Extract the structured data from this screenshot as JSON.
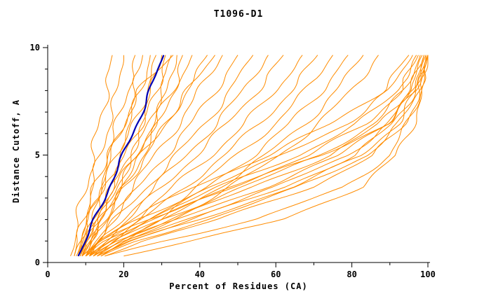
{
  "chart_data": {
    "type": "line",
    "title": "T1096-D1",
    "xlabel": "Percent of Residues (CA)",
    "ylabel": "Distance Cutoff, A",
    "xlim": [
      0,
      100
    ],
    "ylim": [
      0,
      10
    ],
    "xticks": [
      0,
      20,
      40,
      60,
      80,
      100
    ],
    "xminor": [
      10,
      30,
      50,
      70,
      90
    ],
    "yticks": [
      0,
      5,
      10
    ],
    "yminor": [
      1,
      2,
      3,
      4,
      6,
      7,
      8,
      9
    ],
    "grid": false,
    "legend_position": "none",
    "colors": {
      "model_curves": "#ff8c00",
      "highlight_curve": "#0000b4",
      "axis": "#000000",
      "background": "#ffffff"
    },
    "y_anchors": [
      0.3,
      1,
      2,
      3.5,
      5,
      6.5,
      8,
      9.65
    ],
    "model_curves_x": [
      [
        6,
        7,
        8,
        10,
        12,
        13.5,
        15.5,
        17
      ],
      [
        7,
        8,
        9.5,
        11.5,
        14,
        16,
        18.5,
        20
      ],
      [
        7,
        8.5,
        10,
        12.5,
        15.5,
        18.5,
        21,
        23
      ],
      [
        8,
        9,
        11,
        14,
        17,
        20,
        23,
        25
      ],
      [
        8,
        9.5,
        11.5,
        14.5,
        18,
        21.5,
        24.5,
        27
      ],
      [
        8.5,
        10,
        12,
        15,
        19,
        23,
        26,
        28.5
      ],
      [
        9,
        10.5,
        13,
        16.5,
        20.5,
        24.5,
        27.5,
        30
      ],
      [
        9,
        11,
        13.5,
        17,
        21.5,
        25.5,
        28.5,
        31
      ],
      [
        10,
        11.5,
        14,
        18,
        22.5,
        26.5,
        30,
        32.5
      ],
      [
        10,
        12,
        15,
        19,
        23.5,
        28,
        31.5,
        34
      ],
      [
        11,
        13,
        16,
        20,
        25,
        29.5,
        33,
        35.5
      ],
      [
        7.5,
        9,
        11,
        13.5,
        16.5,
        20,
        24,
        33
      ],
      [
        8,
        10,
        13,
        18,
        23,
        28,
        33,
        38
      ],
      [
        9,
        11,
        14.5,
        20,
        26,
        31.5,
        36.5,
        42
      ],
      [
        9,
        12,
        16,
        22,
        28.5,
        34.5,
        40,
        46
      ],
      [
        10,
        12.5,
        17,
        24,
        31,
        38,
        44,
        50
      ],
      [
        10,
        13,
        18,
        26,
        34,
        41.5,
        48,
        54
      ],
      [
        11,
        14,
        19.5,
        28,
        36.5,
        44.5,
        51.5,
        58
      ],
      [
        11,
        15,
        21,
        30,
        39,
        47.5,
        55,
        62
      ],
      [
        8.5,
        10.5,
        14,
        19,
        25,
        31,
        37,
        44
      ],
      [
        12,
        16,
        23,
        33,
        43,
        52,
        60,
        67
      ],
      [
        12,
        17,
        25,
        36,
        46.5,
        56,
        64,
        71
      ],
      [
        13,
        18,
        27,
        39,
        50,
        60,
        68,
        75
      ],
      [
        13,
        19,
        29,
        42,
        54,
        64,
        72,
        79
      ],
      [
        14,
        20,
        31,
        45,
        57.5,
        68,
        76,
        83
      ],
      [
        14,
        21,
        33,
        48,
        61,
        71.5,
        80,
        87
      ],
      [
        9,
        13,
        22,
        38,
        58,
        75,
        88,
        95
      ],
      [
        9,
        14,
        24,
        42,
        62,
        79,
        90,
        96
      ],
      [
        10,
        15,
        26,
        45,
        66,
        82,
        92,
        97
      ],
      [
        10,
        16,
        28,
        48,
        69,
        84,
        93,
        97.5
      ],
      [
        11,
        17,
        30,
        51,
        72,
        86,
        94,
        98
      ],
      [
        11,
        18,
        32,
        54,
        74,
        88,
        95,
        98.5
      ],
      [
        12,
        19,
        34,
        57,
        77,
        89,
        95.5,
        99
      ],
      [
        12,
        20,
        36,
        60,
        79,
        90,
        96,
        99
      ],
      [
        13,
        21,
        38,
        62,
        81,
        91,
        96.5,
        99.5
      ],
      [
        13,
        22,
        40,
        64,
        83,
        92,
        97,
        99.5
      ],
      [
        14,
        23,
        42,
        66,
        84,
        93,
        97.5,
        100
      ],
      [
        15,
        25,
        45,
        69,
        86,
        94,
        98,
        100
      ],
      [
        10,
        14,
        26,
        48,
        72,
        90,
        97,
        100
      ],
      [
        15,
        30,
        55,
        78,
        90,
        95,
        98,
        100
      ],
      [
        20,
        38,
        62,
        82,
        92,
        96,
        99,
        100
      ]
    ],
    "highlight_curve_x": [
      8,
      10,
      12.5,
      16,
      20,
      23.5,
      27,
      30.5
    ]
  }
}
